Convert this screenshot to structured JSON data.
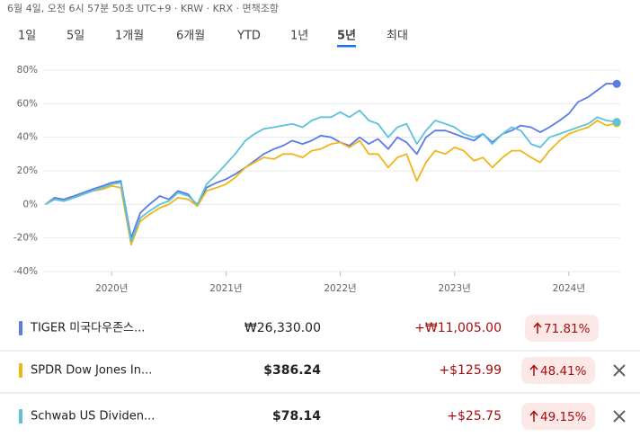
{
  "header": "6월 4일, 오전 6시 57분 50초 UTC+9 · KRW · KRX · 면책조항",
  "tabs": [
    "1일",
    "5일",
    "1개월",
    "6개월",
    "YTD",
    "1년",
    "5년",
    "최대"
  ],
  "selected_tab": 6,
  "chart_data": {
    "type": "line",
    "x": [
      2019.42,
      2019.5,
      2019.58,
      2019.67,
      2019.75,
      2019.83,
      2019.92,
      2020.0,
      2020.08,
      2020.17,
      2020.25,
      2020.33,
      2020.42,
      2020.5,
      2020.58,
      2020.67,
      2020.75,
      2020.83,
      2020.92,
      2021.0,
      2021.08,
      2021.17,
      2021.25,
      2021.33,
      2021.42,
      2021.5,
      2021.58,
      2021.67,
      2021.75,
      2021.83,
      2021.92,
      2022.0,
      2022.08,
      2022.17,
      2022.25,
      2022.33,
      2022.42,
      2022.5,
      2022.58,
      2022.67,
      2022.75,
      2022.83,
      2022.92,
      2023.0,
      2023.08,
      2023.17,
      2023.25,
      2023.33,
      2023.42,
      2023.5,
      2023.58,
      2023.67,
      2023.75,
      2023.83,
      2023.92,
      2024.0,
      2024.08,
      2024.17,
      2024.25,
      2024.33,
      2024.42
    ],
    "series": [
      {
        "name": "TIGER 미국다우존스...",
        "color": "#5b7be6",
        "values": [
          0,
          4,
          3,
          5,
          7,
          9,
          11,
          13,
          14,
          -20,
          -5,
          0,
          5,
          3,
          8,
          6,
          -1,
          10,
          13,
          15,
          18,
          22,
          26,
          30,
          33,
          35,
          38,
          36,
          38,
          41,
          40,
          37,
          35,
          40,
          36,
          39,
          33,
          40,
          37,
          30,
          40,
          44,
          44,
          42,
          40,
          38,
          42,
          37,
          42,
          44,
          47,
          46,
          43,
          46,
          50,
          54,
          61,
          64,
          68,
          72,
          71.81
        ]
      },
      {
        "name": "SPDR Dow Jones In...",
        "color": "#f0b616",
        "values": [
          0,
          3,
          2,
          4,
          6,
          8,
          9,
          11,
          10,
          -24,
          -10,
          -6,
          -2,
          0,
          4,
          3,
          -1,
          8,
          10,
          12,
          16,
          22,
          25,
          28,
          27,
          30,
          30,
          28,
          32,
          33,
          36,
          37,
          34,
          38,
          30,
          30,
          22,
          28,
          30,
          14,
          25,
          32,
          30,
          34,
          32,
          26,
          28,
          22,
          28,
          32,
          32,
          28,
          25,
          32,
          38,
          42,
          44,
          46,
          50,
          47,
          48.41
        ]
      },
      {
        "name": "Schwab US Dividen...",
        "color": "#5bc2dc",
        "values": [
          0,
          3,
          2,
          4,
          6,
          8,
          10,
          12,
          13,
          -22,
          -8,
          -4,
          0,
          2,
          7,
          5,
          0,
          12,
          18,
          24,
          30,
          38,
          42,
          45,
          46,
          47,
          48,
          46,
          50,
          52,
          52,
          55,
          52,
          56,
          50,
          48,
          40,
          46,
          48,
          36,
          44,
          50,
          48,
          46,
          42,
          40,
          42,
          36,
          42,
          46,
          44,
          36,
          34,
          40,
          42,
          44,
          46,
          48,
          52,
          50,
          49.15
        ]
      }
    ],
    "xlim": [
      2019.4,
      2024.45
    ],
    "xticks": [
      {
        "value": 2020,
        "label": "2020년"
      },
      {
        "value": 2021,
        "label": "2021년"
      },
      {
        "value": 2022,
        "label": "2022년"
      },
      {
        "value": 2023,
        "label": "2023년"
      },
      {
        "value": 2024,
        "label": "2024년"
      }
    ],
    "ylim": [
      -40,
      80
    ],
    "yticks": [
      {
        "value": -40,
        "label": "-40%"
      },
      {
        "value": -20,
        "label": "-20%"
      },
      {
        "value": 0,
        "label": "0%"
      },
      {
        "value": 20,
        "label": "20%"
      },
      {
        "value": 40,
        "label": "40%"
      },
      {
        "value": 60,
        "label": "60%"
      },
      {
        "value": 80,
        "label": "80%"
      }
    ],
    "grid": true
  },
  "rows": [
    {
      "price": "₩26,330.00",
      "change": "+₩11,005.00",
      "percent": "71.81%",
      "removable": false
    },
    {
      "price": "$386.24",
      "change": "+$125.99",
      "percent": "48.41%",
      "removable": true
    },
    {
      "price": "$78.14",
      "change": "+$25.75",
      "percent": "49.15%",
      "removable": true
    }
  ]
}
